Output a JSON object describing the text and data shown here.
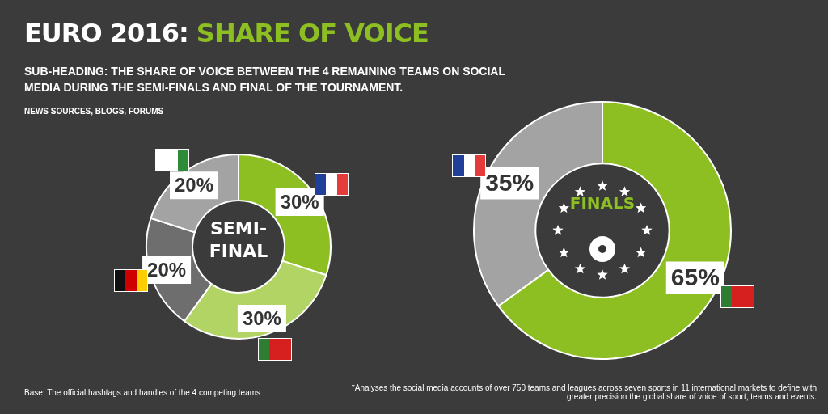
{
  "chart_data": [
    {
      "type": "donut",
      "title": "EURO 2016: SHARE OF VOICE",
      "subtitle": "SUB-HEADING: THE SHARE OF VOICE BETWEEN THE 4 REMAINING TEAMS ON SOCIAL MEDIA DURING THE SEMI-FINALS AND FINAL OF THE TOURNAMENT.",
      "annotations": [
        "NEWS SOURCES, BLOGS, FORUMS",
        "SEMI-FINAL",
        "Base: The official hashtags and handles of the 4 competing teams",
        "*Analyses the social media accounts of over 750 teams and leagues across seven sports in 11 international markets to define with greater precision the global share of voice of sport, teams and events."
      ],
      "categories": [
        null,
        null,
        null,
        null
      ],
      "values": [
        30,
        30,
        20,
        20
      ],
      "colors": [
        "#8dbf22",
        "#b2d465",
        "#6e6e6e",
        "#a3a3a3"
      ],
      "value_labels": [
        "30%",
        "30%",
        "20%",
        "20%"
      ],
      "legend": false
    },
    {
      "type": "donut",
      "annotations": [
        "FINALS"
      ],
      "categories": [
        null,
        null
      ],
      "values": [
        65,
        35
      ],
      "colors": [
        "#8dbf22",
        "#a3a3a3"
      ],
      "value_labels": [
        "65%",
        "35%"
      ],
      "legend": false
    }
  ]
}
